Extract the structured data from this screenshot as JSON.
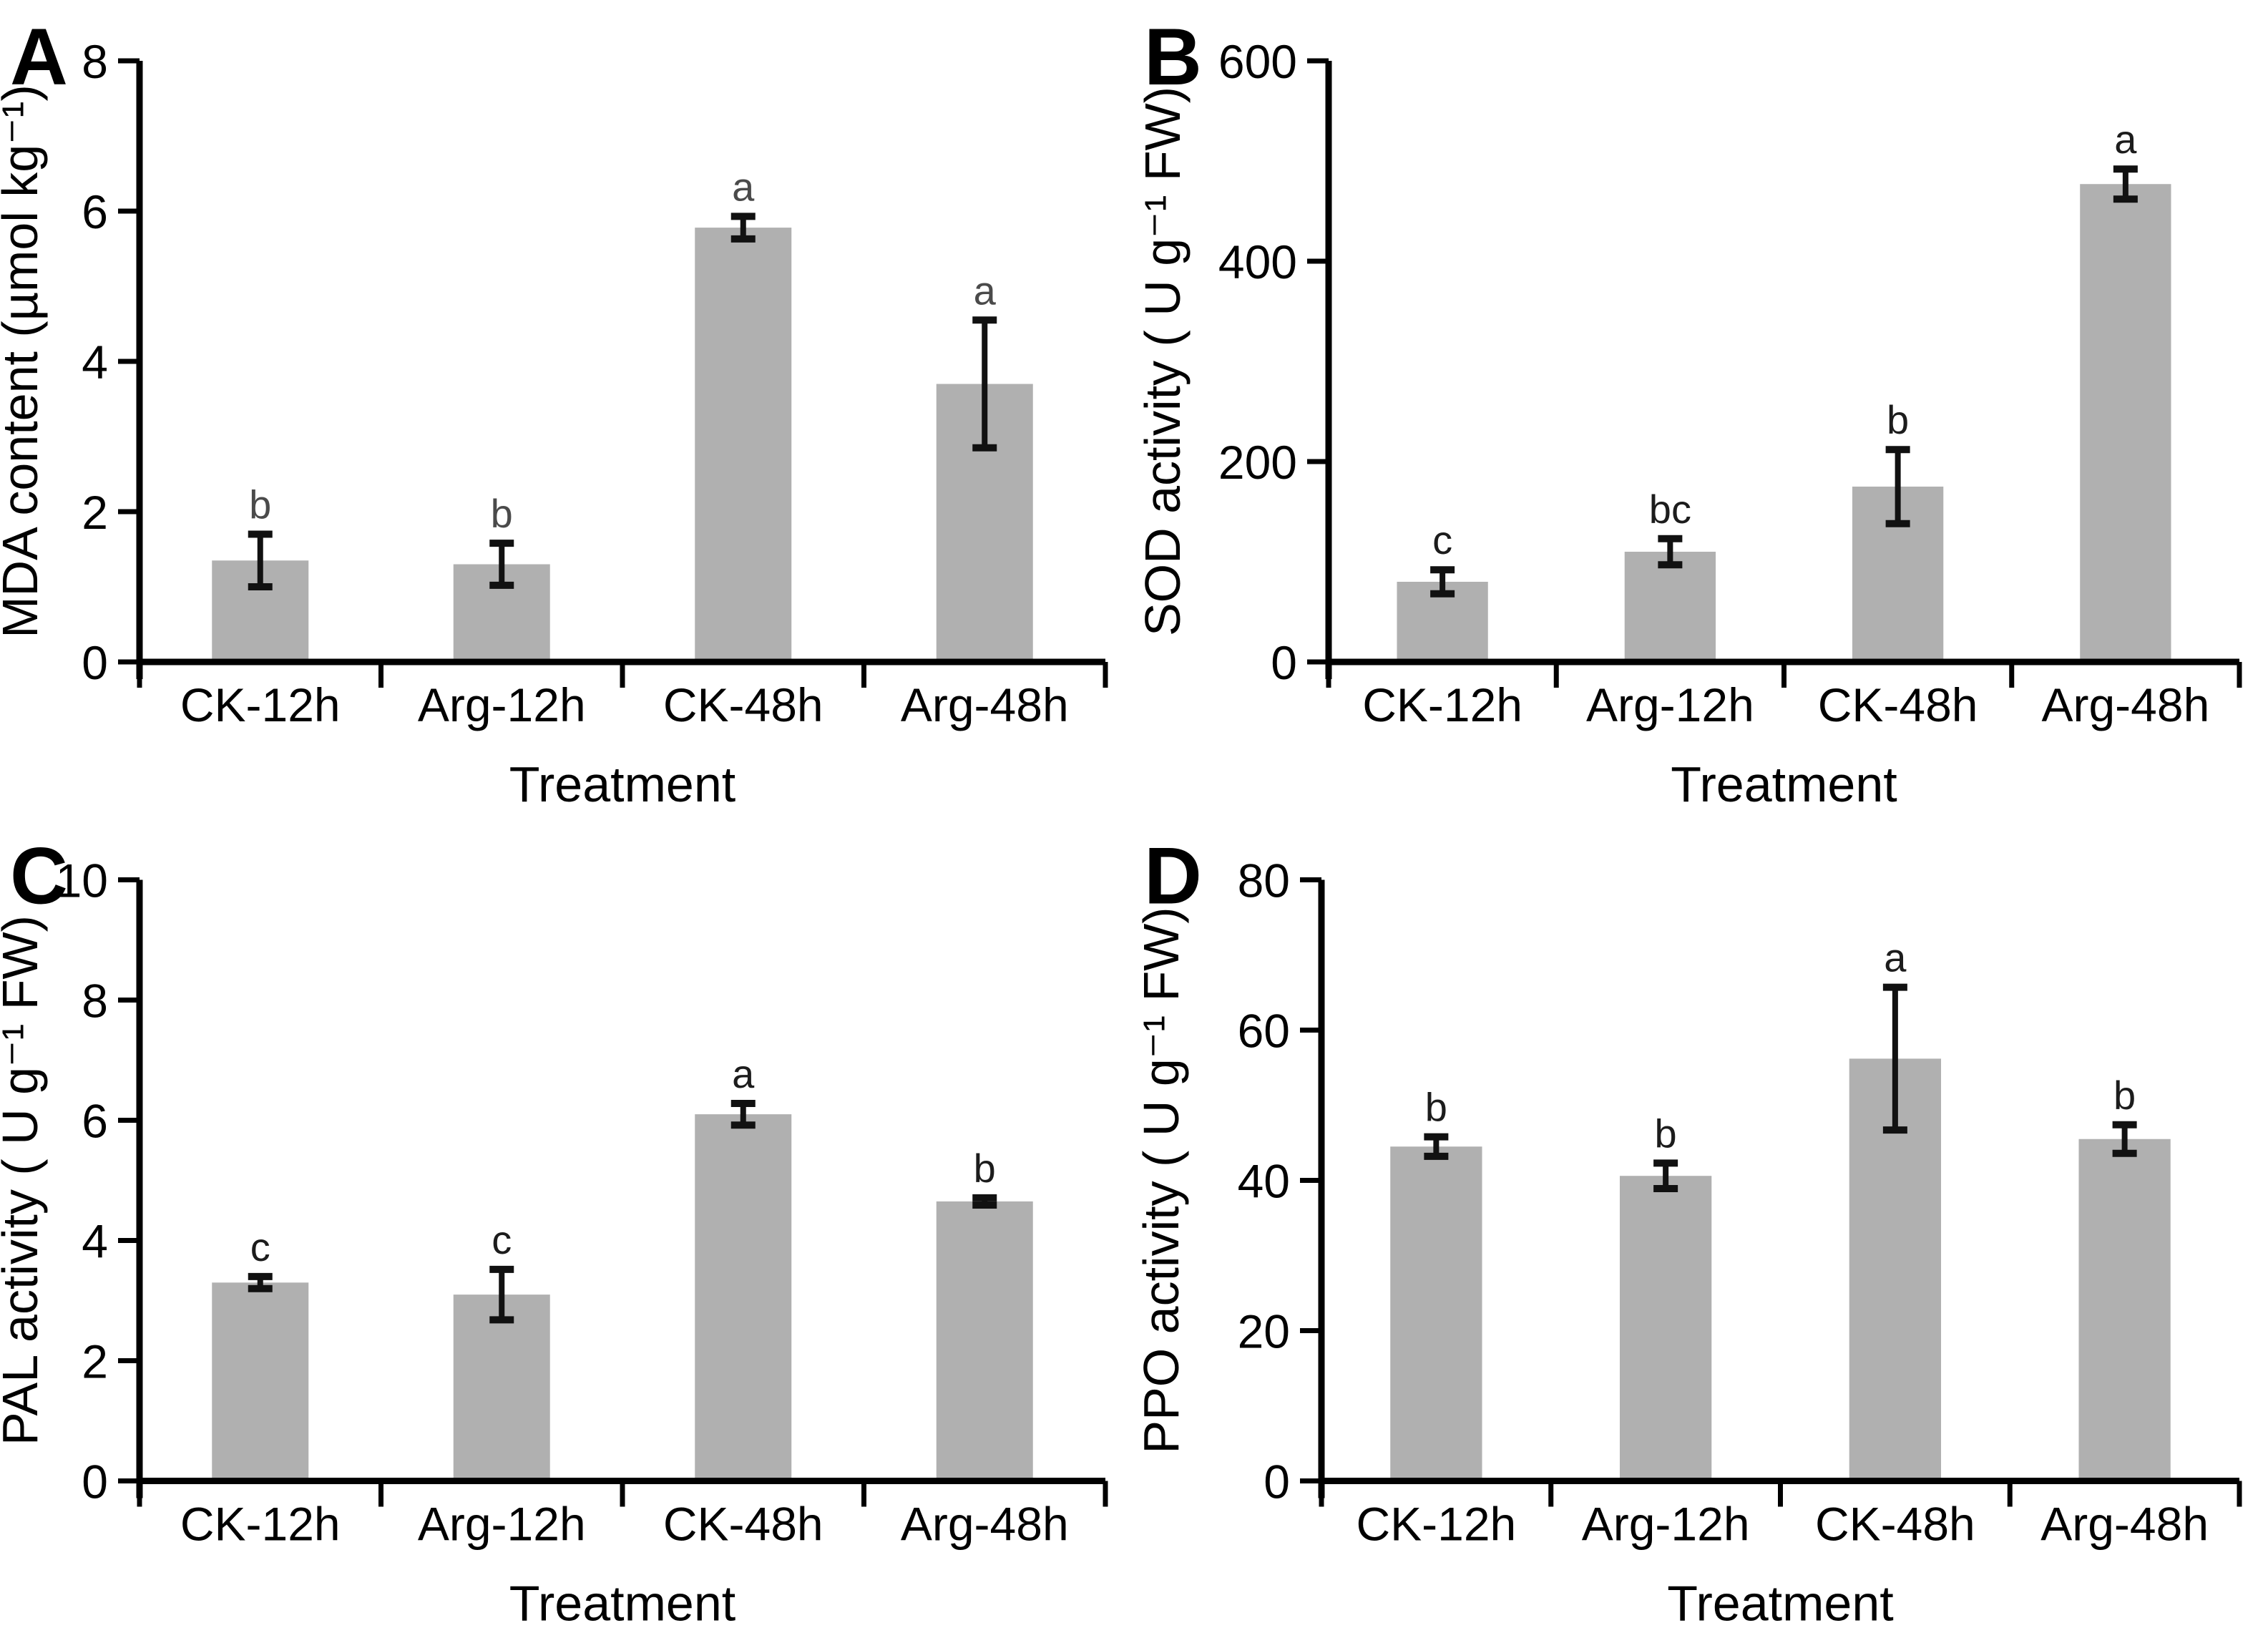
{
  "figure": {
    "background": "#ffffff",
    "bar_color": "#b0b0b0",
    "axis_color": "#000000",
    "error_bar_color": "#111111",
    "x_axis_title": "Treatment",
    "categories": [
      "CK-12h",
      "Arg-12h",
      "CK-48h",
      "Arg-48h"
    ]
  },
  "chart_data": [
    {
      "type": "bar",
      "panel_letter": "A",
      "ylabel": "MDA content (µmol kg⁻¹)",
      "xlabel": "Treatment",
      "categories": [
        "CK-12h",
        "Arg-12h",
        "CK-48h",
        "Arg-48h"
      ],
      "values": [
        1.35,
        1.3,
        5.78,
        3.7
      ],
      "errors": [
        0.35,
        0.28,
        0.15,
        0.85
      ],
      "sig_letters": [
        "b",
        "b",
        "a",
        "a"
      ],
      "letter_color": "#4a4a4a",
      "ylim": [
        0,
        8
      ],
      "yticks": [
        0,
        2,
        4,
        6,
        8
      ],
      "grid": false,
      "legend": "none"
    },
    {
      "type": "bar",
      "panel_letter": "B",
      "ylabel": "SOD activity ( U g⁻¹ FW)",
      "xlabel": "Treatment",
      "categories": [
        "CK-12h",
        "Arg-12h",
        "CK-48h",
        "Arg-48h"
      ],
      "values": [
        80,
        110,
        175,
        477
      ],
      "errors": [
        12,
        13,
        37,
        15
      ],
      "sig_letters": [
        "c",
        "bc",
        "b",
        "a"
      ],
      "letter_color": "#1c1c1c",
      "ylim": [
        0,
        600
      ],
      "yticks": [
        0,
        200,
        400,
        600
      ],
      "grid": false,
      "legend": "none"
    },
    {
      "type": "bar",
      "panel_letter": "C",
      "ylabel": "PAL activity ( U g⁻¹ FW)",
      "xlabel": "Treatment",
      "categories": [
        "CK-12h",
        "Arg-12h",
        "CK-48h",
        "Arg-48h"
      ],
      "values": [
        3.3,
        3.1,
        6.1,
        4.65
      ],
      "errors": [
        0.1,
        0.42,
        0.18,
        0.06
      ],
      "sig_letters": [
        "c",
        "c",
        "a",
        "b"
      ],
      "letter_color": "#1c1c1c",
      "ylim": [
        0,
        10
      ],
      "yticks": [
        0,
        2,
        4,
        6,
        8,
        10
      ],
      "grid": false,
      "legend": "none"
    },
    {
      "type": "bar",
      "panel_letter": "D",
      "ylabel": "PPO activity ( U g⁻¹ FW)",
      "xlabel": "Treatment",
      "categories": [
        "CK-12h",
        "Arg-12h",
        "CK-48h",
        "Arg-48h"
      ],
      "values": [
        44.5,
        40.6,
        56.2,
        45.5
      ],
      "errors": [
        1.3,
        1.7,
        9.5,
        1.9
      ],
      "sig_letters": [
        "b",
        "b",
        "a",
        "b"
      ],
      "letter_color": "#1c1c1c",
      "ylim": [
        0,
        80
      ],
      "yticks": [
        0,
        20,
        40,
        60,
        80
      ],
      "grid": false,
      "legend": "none"
    }
  ]
}
